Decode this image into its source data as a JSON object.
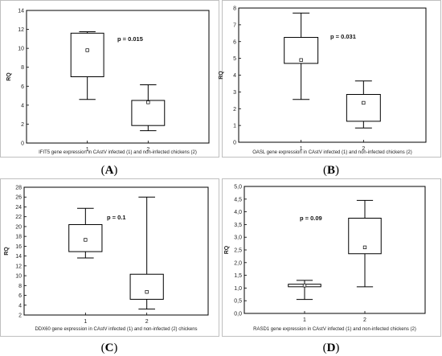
{
  "chart_data": [
    {
      "type": "boxplot",
      "panel_label": "(A)",
      "xlabel": "IFIT5 gene expression in CAstV infected (1) and non-infected chickens (2)",
      "ylabel": "RQ",
      "ylim": [
        0,
        14
      ],
      "yticks": [
        "0",
        "2",
        "4",
        "6",
        "8",
        "10",
        "12",
        "14"
      ],
      "categories": [
        "1",
        "2"
      ],
      "boxes": [
        {
          "min": 4.6,
          "q1": 7.0,
          "median": 9.8,
          "q3": 11.6,
          "max": 11.75
        },
        {
          "min": 1.3,
          "q1": 1.85,
          "median": 4.3,
          "q3": 4.5,
          "max": 6.15
        }
      ],
      "annotation": "p = 0.015"
    },
    {
      "type": "boxplot",
      "panel_label": "(B)",
      "xlabel": "OASL gene expression in CAstV infected (1) and non-infected chickens (2)",
      "ylabel": "RQ",
      "ylim": [
        0,
        8
      ],
      "yticks": [
        "0",
        "1",
        "2",
        "3",
        "4",
        "5",
        "6",
        "7",
        "8"
      ],
      "categories": [
        "1",
        "2"
      ],
      "boxes": [
        {
          "min": 2.55,
          "q1": 4.7,
          "median": 4.9,
          "q3": 6.25,
          "max": 7.7
        },
        {
          "min": 0.85,
          "q1": 1.25,
          "median": 2.35,
          "q3": 2.85,
          "max": 3.65
        }
      ],
      "annotation": "p = 0.031"
    },
    {
      "type": "boxplot",
      "panel_label": "(C)",
      "xlabel": "DDX60 gene expression in CAstV infected (1) and non-infected (2) chickens",
      "ylabel": "RQ",
      "ylim": [
        2,
        28
      ],
      "yticks": [
        "2",
        "4",
        "6",
        "8",
        "10",
        "12",
        "14",
        "16",
        "18",
        "20",
        "22",
        "24",
        "26",
        "28"
      ],
      "categories": [
        "1",
        "2"
      ],
      "boxes": [
        {
          "min": 13.6,
          "q1": 14.9,
          "median": 17.3,
          "q3": 20.4,
          "max": 23.7
        },
        {
          "min": 3.2,
          "q1": 5.2,
          "median": 6.7,
          "q3": 10.3,
          "max": 26.0
        }
      ],
      "annotation": "p = 0.1"
    },
    {
      "type": "boxplot",
      "panel_label": "(D)",
      "xlabel": "RASD1 gene expression in CAstV infected (1) and non-infected chickens (2)",
      "ylabel": "RQ",
      "ylim": [
        0,
        5
      ],
      "yticks": [
        "0,0",
        "0,5",
        "1,0",
        "1,5",
        "2,0",
        "2,5",
        "3,0",
        "3,5",
        "4,0",
        "4,5",
        "5,0"
      ],
      "categories": [
        "1",
        "2"
      ],
      "boxes": [
        {
          "min": 0.55,
          "q1": 1.05,
          "median": 1.1,
          "q3": 1.15,
          "max": 1.3
        },
        {
          "min": 1.05,
          "q1": 2.35,
          "median": 2.6,
          "q3": 3.75,
          "max": 4.45
        }
      ],
      "annotation": "p = 0.09"
    }
  ]
}
